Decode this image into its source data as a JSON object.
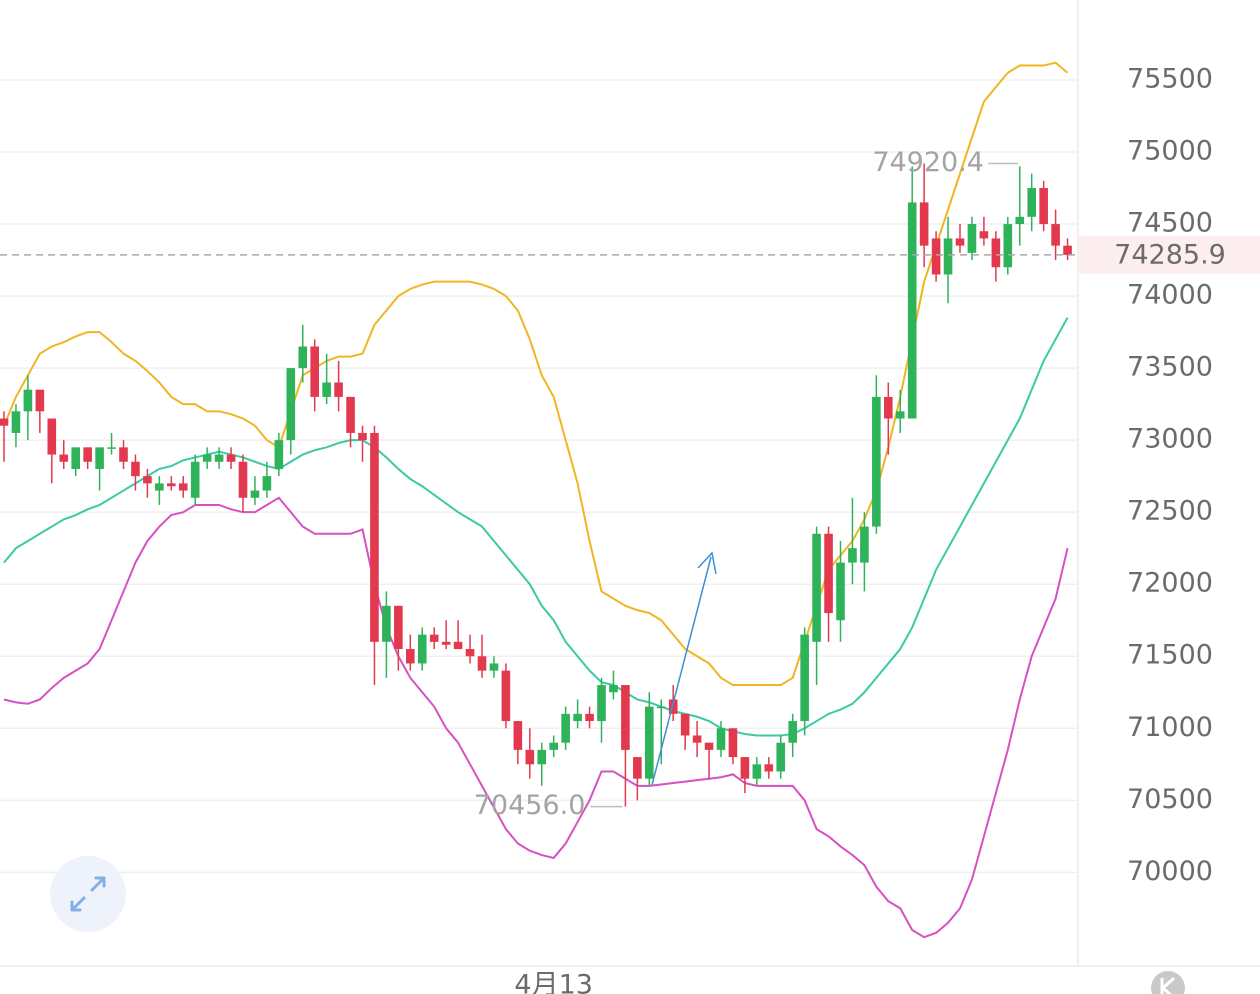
{
  "chart_data": {
    "type": "candlestick",
    "categories": [
      null,
      null,
      null,
      null,
      null,
      null,
      null,
      null,
      null,
      null,
      null,
      null,
      null,
      null,
      null,
      null,
      null,
      null,
      null,
      null,
      null,
      null,
      null,
      null,
      null,
      null,
      null,
      null,
      null,
      null,
      null,
      null,
      null,
      null,
      null,
      null,
      null,
      null,
      null,
      null,
      null,
      null,
      null,
      null,
      null,
      null,
      "4月13",
      null,
      null,
      null,
      null,
      null,
      null,
      null,
      null,
      null,
      null,
      null,
      null,
      null,
      null,
      null,
      null,
      null,
      null,
      null,
      null,
      null,
      null,
      null,
      null,
      null,
      null,
      null,
      null,
      null,
      null,
      null,
      null,
      null,
      null,
      null,
      null,
      null,
      null,
      null,
      null,
      null,
      null,
      null
    ],
    "open": [
      73150,
      73050,
      73200,
      73350,
      73150,
      72900,
      72800,
      72950,
      72800,
      72950,
      72950,
      72850,
      72750,
      72650,
      72700,
      72700,
      72600,
      72850,
      72850,
      72900,
      72850,
      72600,
      72650,
      72800,
      73000,
      73500,
      73650,
      73300,
      73400,
      73300,
      73050,
      73050,
      71600,
      71850,
      71550,
      71450,
      71650,
      71600,
      71600,
      71550,
      71500,
      71400,
      71400,
      71050,
      70850,
      70750,
      70850,
      70900,
      71050,
      71100,
      71050,
      71250,
      71300,
      70800,
      70650,
      71150,
      71200,
      71100,
      70950,
      70900,
      70850,
      71000,
      70800,
      70650,
      70750,
      70700,
      70900,
      71050,
      71600,
      72350,
      71750,
      72150,
      72150,
      72400,
      73300,
      73150,
      73150,
      74650,
      74400,
      74150,
      74400,
      74300,
      74450,
      74400,
      74200,
      74500,
      74550,
      74750,
      74500,
      74350
    ],
    "high": [
      73200,
      73250,
      73450,
      73350,
      73150,
      73000,
      72950,
      72950,
      72950,
      73050,
      73000,
      72900,
      72800,
      72750,
      72750,
      72750,
      72900,
      72950,
      72950,
      72950,
      72900,
      72750,
      72850,
      73050,
      73500,
      73800,
      73700,
      73600,
      73550,
      73300,
      73100,
      73100,
      71950,
      71850,
      71650,
      71700,
      71700,
      71750,
      71750,
      71650,
      71650,
      71500,
      71450,
      71050,
      71000,
      70900,
      70950,
      71150,
      71200,
      71150,
      71350,
      71400,
      71300,
      70800,
      71250,
      71200,
      71300,
      71100,
      71050,
      70900,
      71050,
      71000,
      70800,
      70800,
      70800,
      70950,
      71100,
      71700,
      72400,
      72400,
      72300,
      72600,
      72500,
      73450,
      73400,
      73350,
      74900,
      74920.4,
      74450,
      74550,
      74500,
      74550,
      74550,
      74450,
      74550,
      74900,
      74850,
      74800,
      74600,
      74400
    ],
    "low": [
      72850,
      72950,
      73000,
      73050,
      72700,
      72800,
      72750,
      72800,
      72650,
      72900,
      72800,
      72650,
      72600,
      72550,
      72650,
      72600,
      72550,
      72800,
      72800,
      72800,
      72500,
      72550,
      72600,
      72750,
      72900,
      73400,
      73200,
      73250,
      73200,
      72950,
      72850,
      71300,
      71350,
      71400,
      71400,
      71400,
      71550,
      71550,
      71550,
      71450,
      71350,
      71350,
      71000,
      70750,
      70650,
      70600,
      70800,
      70850,
      71000,
      71000,
      70900,
      71200,
      70456,
      70500,
      70600,
      70750,
      71050,
      70850,
      70800,
      70650,
      70800,
      70750,
      70550,
      70600,
      70650,
      70650,
      70800,
      70950,
      71300,
      71600,
      71600,
      72000,
      71950,
      72350,
      72900,
      73050,
      73150,
      74200,
      74100,
      73950,
      74300,
      74250,
      74350,
      74100,
      74150,
      74350,
      74450,
      74450,
      74250,
      74250
    ],
    "close": [
      73100,
      73200,
      73350,
      73200,
      72900,
      72850,
      72950,
      72850,
      72950,
      72950,
      72850,
      72750,
      72700,
      72700,
      72680,
      72650,
      72850,
      72900,
      72900,
      72850,
      72600,
      72650,
      72750,
      73000,
      73500,
      73650,
      73300,
      73400,
      73300,
      73050,
      73000,
      71600,
      71850,
      71550,
      71450,
      71650,
      71600,
      71580,
      71550,
      71500,
      71400,
      71450,
      71050,
      70850,
      70750,
      70850,
      70900,
      71100,
      71100,
      71050,
      71300,
      71300,
      70850,
      70650,
      71150,
      71150,
      71100,
      70950,
      70900,
      70850,
      71000,
      70800,
      70650,
      70750,
      70700,
      70900,
      71050,
      71650,
      72350,
      71800,
      72150,
      72250,
      72400,
      73300,
      73150,
      73200,
      74650,
      74350,
      74150,
      74400,
      74350,
      74500,
      74400,
      74200,
      74500,
      74550,
      74750,
      74500,
      74350,
      74285.9
    ],
    "up_color": "#2eb35a",
    "down_color": "#e2394e",
    "series": [
      {
        "color": "#f0b520",
        "values": [
          73100,
          73300,
          73450,
          73600,
          73650,
          73680,
          73720,
          73750,
          73750,
          73680,
          73600,
          73550,
          73480,
          73400,
          73300,
          73250,
          73250,
          73200,
          73200,
          73180,
          73150,
          73100,
          73000,
          72950,
          73200,
          73450,
          73500,
          73550,
          73580,
          73580,
          73600,
          73800,
          73900,
          74000,
          74050,
          74080,
          74100,
          74100,
          74100,
          74100,
          74080,
          74050,
          74000,
          73900,
          73700,
          73450,
          73300,
          73000,
          72700,
          72300,
          71950,
          71900,
          71850,
          71820,
          71800,
          71750,
          71650,
          71550,
          71500,
          71450,
          71350,
          71300,
          71300,
          71300,
          71300,
          71300,
          71350,
          71600,
          71850,
          72100,
          72200,
          72300,
          72450,
          72650,
          72950,
          73300,
          73700,
          74100,
          74350,
          74600,
          74850,
          75100,
          75350,
          75450,
          75550,
          75600,
          75600,
          75600,
          75620,
          75550
        ]
      },
      {
        "color": "#3cc9a5",
        "values": [
          72150,
          72250,
          72300,
          72350,
          72400,
          72450,
          72480,
          72520,
          72550,
          72600,
          72650,
          72700,
          72750,
          72800,
          72820,
          72860,
          72880,
          72900,
          72920,
          72900,
          72880,
          72850,
          72820,
          72800,
          72850,
          72900,
          72930,
          72950,
          72980,
          73000,
          73000,
          72950,
          72880,
          72800,
          72730,
          72680,
          72620,
          72560,
          72500,
          72450,
          72400,
          72300,
          72200,
          72100,
          72000,
          71850,
          71750,
          71600,
          71500,
          71400,
          71320,
          71300,
          71250,
          71200,
          71180,
          71150,
          71120,
          71100,
          71080,
          71050,
          71000,
          70980,
          70960,
          70950,
          70950,
          70950,
          70960,
          71000,
          71050,
          71100,
          71130,
          71170,
          71250,
          71350,
          71450,
          71550,
          71700,
          71900,
          72100,
          72250,
          72400,
          72550,
          72700,
          72850,
          73000,
          73150,
          73350,
          73550,
          73700,
          73850
        ]
      },
      {
        "color": "#d651c2",
        "values": [
          71200,
          71180,
          71170,
          71200,
          71280,
          71350,
          71400,
          71450,
          71550,
          71750,
          71950,
          72150,
          72300,
          72400,
          72480,
          72500,
          72550,
          72550,
          72550,
          72520,
          72500,
          72500,
          72550,
          72600,
          72500,
          72400,
          72350,
          72350,
          72350,
          72350,
          72380,
          72000,
          71700,
          71500,
          71350,
          71250,
          71150,
          71000,
          70900,
          70750,
          70600,
          70450,
          70300,
          70200,
          70150,
          70120,
          70100,
          70200,
          70350,
          70500,
          70700,
          70700,
          70650,
          70600,
          70600,
          70610,
          70620,
          70630,
          70640,
          70650,
          70660,
          70680,
          70620,
          70600,
          70600,
          70600,
          70600,
          70500,
          70300,
          70250,
          70180,
          70120,
          70050,
          69900,
          69800,
          69750,
          69600,
          69550,
          69580,
          69650,
          69750,
          69950,
          70250,
          70550,
          70850,
          71200,
          71500,
          71700,
          71900,
          72250
        ]
      }
    ],
    "ylim": [
      69350,
      76055
    ],
    "yticks": [
      70000,
      70500,
      71000,
      71500,
      72000,
      72500,
      73000,
      73500,
      74000,
      74500,
      75000,
      75500
    ],
    "grid": true,
    "max_label": "74920.4",
    "min_label": "70456.0",
    "last_price_label": "74285.9"
  }
}
